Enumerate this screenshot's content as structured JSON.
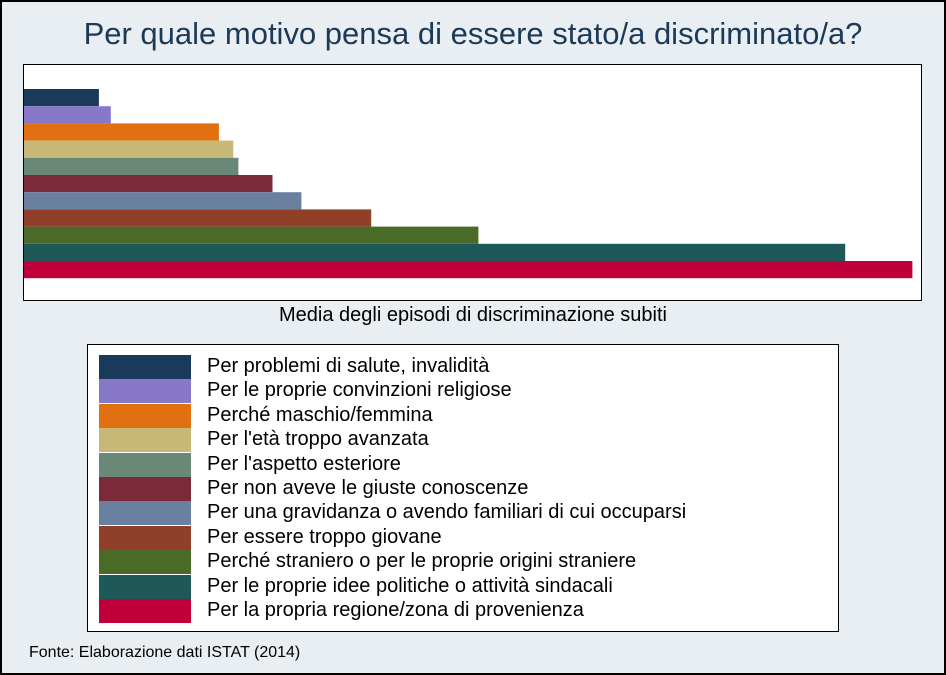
{
  "chart_data": {
    "type": "bar",
    "orientation": "horizontal",
    "title": "Per quale motivo pensa di essere stato/a discriminato/a?",
    "xlabel": "Media degli episodi di discriminazione subiti",
    "ylabel": "",
    "xlim": [
      0,
      10.4
    ],
    "grid": false,
    "legend_position": "bottom",
    "categories": [
      "Per problemi di salute, invalidità",
      "Per le proprie convinzioni religiose",
      "Perché maschio/femmina",
      "Per l'età troppo avanzata",
      "Per l'aspetto esteriore",
      "Per non aveve le giuste conoscenze",
      "Per una gravidanza o avendo familiari di cui occuparsi",
      "Per essere troppo giovane",
      "Perché straniero o per le proprie origini straniere",
      "Per le proprie idee politiche o attività sindacali",
      "Per la propria regione/zona di provenienza"
    ],
    "values": [
      0.88,
      1.02,
      2.29,
      2.46,
      2.52,
      2.92,
      3.26,
      4.08,
      5.34,
      9.65,
      10.44
    ],
    "colors": [
      "#1a3a5c",
      "#8878c8",
      "#e07010",
      "#c8b878",
      "#6a8878",
      "#7a2a38",
      "#6a80a0",
      "#904028",
      "#4a6a28",
      "#1e5858",
      "#c0003a"
    ]
  },
  "source": "Fonte: Elaborazione dati ISTAT (2014)"
}
